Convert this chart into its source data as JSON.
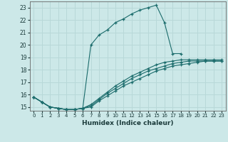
{
  "xlabel": "Humidex (Indice chaleur)",
  "xlim": [
    -0.5,
    23.5
  ],
  "ylim": [
    14.7,
    23.5
  ],
  "background_color": "#cce8e8",
  "grid_color": "#b8d8d8",
  "line_color": "#1a6b6b",
  "yticks": [
    15,
    16,
    17,
    18,
    19,
    20,
    21,
    22,
    23
  ],
  "xticks": [
    0,
    1,
    2,
    3,
    4,
    5,
    6,
    7,
    8,
    9,
    10,
    11,
    12,
    13,
    14,
    15,
    16,
    17,
    18,
    19,
    20,
    21,
    22,
    23
  ],
  "curves": [
    {
      "x": [
        0,
        1,
        2,
        3,
        4,
        5,
        6,
        7,
        8,
        9,
        10,
        11,
        12,
        13,
        14,
        15,
        16,
        17,
        18
      ],
      "y": [
        15.8,
        15.4,
        15.0,
        14.9,
        14.8,
        14.8,
        14.9,
        20.0,
        20.8,
        21.2,
        21.8,
        22.1,
        22.5,
        22.8,
        23.0,
        23.2,
        21.8,
        19.3,
        19.3
      ]
    },
    {
      "x": [
        0,
        1,
        2,
        3,
        4,
        5,
        6,
        7,
        8,
        9,
        10,
        11,
        12,
        13,
        14,
        15,
        16,
        17,
        18,
        19,
        20,
        21,
        22,
        23
      ],
      "y": [
        15.8,
        15.4,
        15.0,
        14.9,
        14.8,
        14.8,
        14.9,
        15.0,
        15.5,
        15.9,
        16.3,
        16.7,
        17.0,
        17.3,
        17.6,
        17.9,
        18.1,
        18.3,
        18.4,
        18.5,
        18.6,
        18.7,
        18.7,
        18.7
      ]
    },
    {
      "x": [
        0,
        1,
        2,
        3,
        4,
        5,
        6,
        7,
        8,
        9,
        10,
        11,
        12,
        13,
        14,
        15,
        16,
        17,
        18,
        19,
        20,
        21,
        22,
        23
      ],
      "y": [
        15.8,
        15.4,
        15.0,
        14.9,
        14.8,
        14.8,
        14.9,
        15.1,
        15.6,
        16.1,
        16.5,
        16.9,
        17.3,
        17.6,
        17.9,
        18.1,
        18.3,
        18.5,
        18.6,
        18.7,
        18.7,
        18.7,
        18.7,
        18.7
      ]
    },
    {
      "x": [
        0,
        1,
        2,
        3,
        4,
        5,
        6,
        7,
        8,
        9,
        10,
        11,
        12,
        13,
        14,
        15,
        16,
        17,
        18,
        19,
        20,
        21,
        22,
        23
      ],
      "y": [
        15.8,
        15.4,
        15.0,
        14.9,
        14.8,
        14.8,
        14.9,
        15.2,
        15.7,
        16.2,
        16.7,
        17.1,
        17.5,
        17.8,
        18.1,
        18.4,
        18.6,
        18.7,
        18.8,
        18.8,
        18.8,
        18.8,
        18.8,
        18.8
      ]
    }
  ]
}
